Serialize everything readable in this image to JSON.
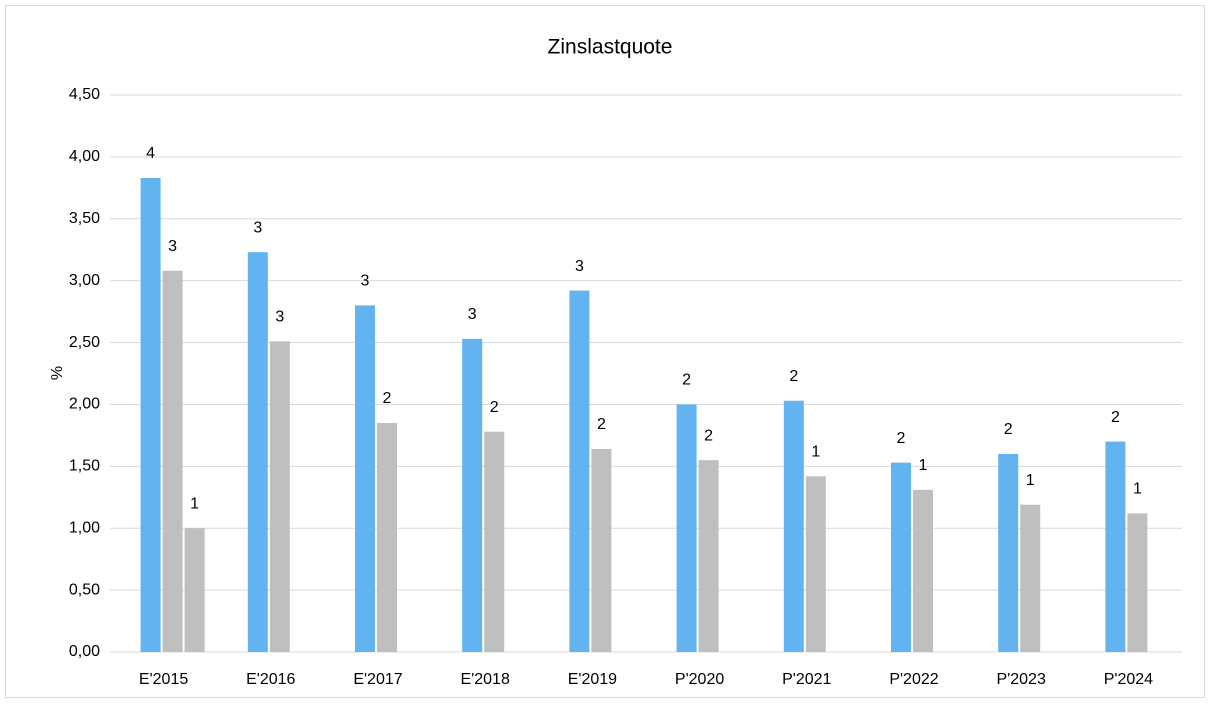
{
  "chart_data": {
    "type": "bar",
    "title": "Zinslastquote",
    "y_label": "%",
    "categories": [
      "E'2015",
      "E'2016",
      "E'2017",
      "E'2018",
      "E'2019",
      "P'2020",
      "P'2021",
      "P'2022",
      "P'2023",
      "P'2024"
    ],
    "series": [
      {
        "color": "#63b3f0",
        "values": [
          3.83,
          3.23,
          2.8,
          2.53,
          2.92,
          2.0,
          2.03,
          1.53,
          1.6,
          1.7
        ],
        "value_labels": [
          "4",
          "3",
          "3",
          "3",
          "3",
          "2",
          "2",
          "2",
          "2",
          "2"
        ]
      },
      {
        "color": "#bfbfbf",
        "values": [
          3.08,
          2.51,
          1.85,
          1.78,
          1.64,
          1.55,
          1.42,
          1.31,
          1.19,
          1.12
        ],
        "value_labels": [
          "3",
          "3",
          "2",
          "2",
          "2",
          "2",
          "1",
          "1",
          "1",
          "1"
        ]
      },
      {
        "color": "#bfbfbf",
        "values": [
          1.0,
          null,
          null,
          null,
          null,
          null,
          null,
          null,
          null,
          null
        ],
        "value_labels": [
          "1",
          null,
          null,
          null,
          null,
          null,
          null,
          null,
          null,
          null
        ]
      }
    ],
    "ylim": [
      0,
      4.5
    ],
    "yticks": [
      {
        "value": 0,
        "label": "0,00"
      },
      {
        "value": 0.5,
        "label": "0,50"
      },
      {
        "value": 1,
        "label": "1,00"
      },
      {
        "value": 1.5,
        "label": "1,50"
      },
      {
        "value": 2,
        "label": "2,00"
      },
      {
        "value": 2.5,
        "label": "2,50"
      },
      {
        "value": 3,
        "label": "3,00"
      },
      {
        "value": 3.5,
        "label": "3,50"
      },
      {
        "value": 4,
        "label": "4,00"
      },
      {
        "value": 4.5,
        "label": "4,50"
      }
    ],
    "grid": true
  }
}
